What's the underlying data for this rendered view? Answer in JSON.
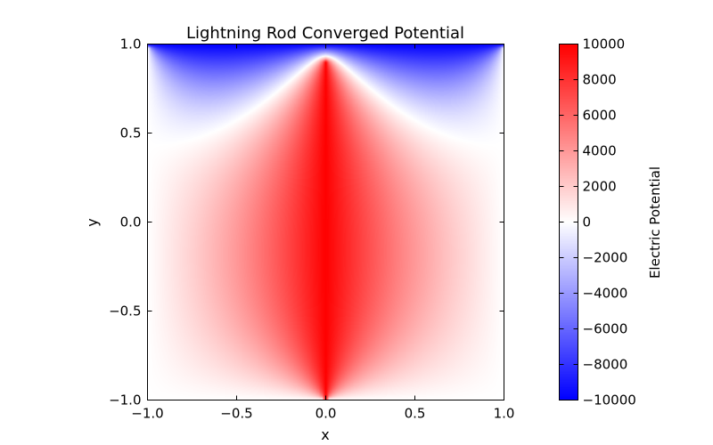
{
  "chart_data": {
    "type": "heatmap",
    "title": "Lightning Rod Converged Potential",
    "xlabel": "x",
    "ylabel": "y",
    "xlim": [
      -1.0,
      1.0
    ],
    "ylim": [
      -1.0,
      1.0
    ],
    "x_ticks": [
      -1.0,
      -0.5,
      0.0,
      0.5,
      1.0
    ],
    "x_tick_labels": [
      "−1.0",
      "−0.5",
      "0.0",
      "0.5",
      "1.0"
    ],
    "y_ticks": [
      -1.0,
      -0.5,
      0.0,
      0.5,
      1.0
    ],
    "y_tick_labels": [
      "−1.0",
      "−0.5",
      "0.0",
      "0.5",
      "1.0"
    ],
    "grid": false,
    "colormap": "bwr",
    "colormap_colors": {
      "low": "#0000ff",
      "mid": "#ffffff",
      "high": "#ff0000"
    },
    "colorbar": {
      "label": "Electric Potential",
      "vmin": -10000,
      "vmax": 10000,
      "ticks": [
        -10000,
        -8000,
        -6000,
        -4000,
        -2000,
        0,
        2000,
        4000,
        6000,
        8000,
        10000
      ],
      "tick_labels": [
        "−10000",
        "−8000",
        "−6000",
        "−4000",
        "−2000",
        "0",
        "2000",
        "4000",
        "6000",
        "8000",
        "10000"
      ],
      "placement": "right"
    },
    "field": {
      "description_values": {
        "rod": {
          "x": 0.0,
          "y_from": -1.0,
          "y_to": 0.9,
          "potential": 10000
        },
        "top_boundary": {
          "y": 1.0,
          "potential": -10000
        },
        "bottom_boundary": {
          "y": -1.0,
          "potential": 0
        },
        "side_boundaries": {
          "x": [
            -1.0,
            1.0
          ],
          "potential": 0
        }
      }
    }
  }
}
